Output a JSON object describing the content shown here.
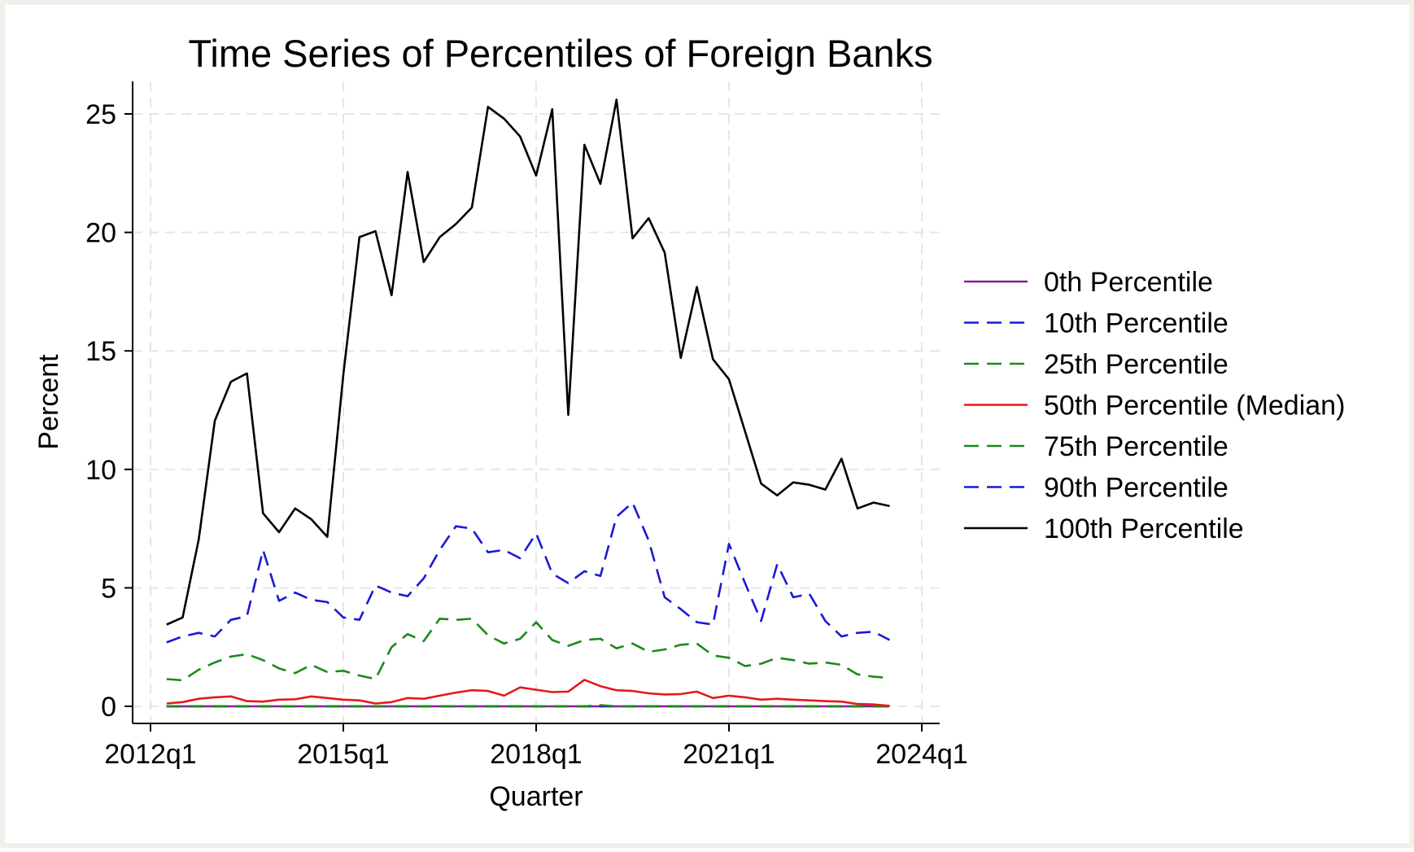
{
  "chart_data": {
    "type": "line",
    "title": "Time Series of Percentiles of Foreign Banks",
    "xlabel": "Quarter",
    "ylabel": "Percent",
    "xlim": [
      0,
      48
    ],
    "ylim": [
      -0.7,
      26.4
    ],
    "x_ticks": [
      {
        "value": 0,
        "label": "2012q1"
      },
      {
        "value": 12,
        "label": "2015q1"
      },
      {
        "value": 24,
        "label": "2018q1"
      },
      {
        "value": 36,
        "label": "2021q1"
      },
      {
        "value": 48,
        "label": "2024q1"
      }
    ],
    "y_ticks": [
      {
        "value": 0,
        "label": "0"
      },
      {
        "value": 5,
        "label": "5"
      },
      {
        "value": 10,
        "label": "10"
      },
      {
        "value": 15,
        "label": "15"
      },
      {
        "value": 20,
        "label": "20"
      },
      {
        "value": 25,
        "label": "25"
      }
    ],
    "grid": true,
    "legend_position": "right",
    "x": [
      1,
      2,
      3,
      4,
      5,
      6,
      7,
      8,
      9,
      10,
      11,
      12,
      13,
      14,
      15,
      16,
      17,
      18,
      19,
      20,
      21,
      22,
      23,
      24,
      25,
      26,
      27,
      28,
      29,
      30,
      31,
      32,
      33,
      34,
      35,
      36,
      37,
      38,
      39,
      40,
      41,
      42,
      43,
      44,
      45,
      46
    ],
    "series": [
      {
        "name": "0th Percentile",
        "color": "#8b1a9e",
        "dash": "solid",
        "values": [
          0,
          0,
          0,
          0,
          0,
          0,
          0,
          0,
          0,
          0,
          0,
          0,
          0,
          0,
          0,
          0,
          0,
          0,
          0,
          0,
          0,
          0,
          0,
          0,
          0,
          0,
          0,
          0,
          0,
          0,
          0,
          0,
          0,
          0,
          0,
          0,
          0,
          0,
          0,
          0,
          0,
          0,
          0,
          0,
          0,
          0
        ]
      },
      {
        "name": "10th Percentile",
        "color": "#1a1ad6",
        "dash": "dashed",
        "values": [
          0,
          0,
          0,
          0,
          0,
          0,
          0,
          0,
          0,
          0,
          0,
          0,
          0,
          0,
          0,
          0,
          0,
          0,
          0,
          0,
          0,
          0,
          0,
          0,
          0,
          0,
          0,
          0,
          0,
          0,
          0,
          0,
          0,
          0,
          0,
          0,
          0,
          0,
          0,
          0,
          0,
          0,
          0,
          0,
          0,
          0
        ]
      },
      {
        "name": "25th Percentile",
        "color": "#1a8a1a",
        "dash": "dashed",
        "values": [
          0,
          0,
          0,
          0,
          0,
          0,
          0,
          0,
          0,
          0,
          0,
          0,
          0,
          0,
          0,
          0,
          0,
          0,
          0,
          0,
          0,
          0,
          0,
          0,
          0,
          0,
          0,
          0.05,
          0,
          0,
          0,
          0,
          0,
          0,
          0,
          0,
          0,
          0,
          0,
          0,
          0,
          0,
          0,
          0,
          0,
          0
        ]
      },
      {
        "name": "50th Percentile (Median)",
        "color": "#e31a1a",
        "dash": "solid",
        "values": [
          0.12,
          0.18,
          0.32,
          0.38,
          0.42,
          0.22,
          0.2,
          0.28,
          0.3,
          0.42,
          0.35,
          0.28,
          0.25,
          0.12,
          0.18,
          0.35,
          0.32,
          0.45,
          0.58,
          0.68,
          0.65,
          0.45,
          0.8,
          0.7,
          0.6,
          0.62,
          1.12,
          0.85,
          0.68,
          0.65,
          0.55,
          0.5,
          0.52,
          0.62,
          0.35,
          0.45,
          0.38,
          0.28,
          0.32,
          0.28,
          0.25,
          0.22,
          0.2,
          0.1,
          0.08,
          0.02
        ]
      },
      {
        "name": "75th Percentile",
        "color": "#1a8a1a",
        "dash": "dashed",
        "values": [
          1.15,
          1.1,
          1.55,
          1.85,
          2.1,
          2.2,
          1.95,
          1.6,
          1.4,
          1.75,
          1.45,
          1.5,
          1.3,
          1.15,
          2.5,
          3.05,
          2.75,
          3.7,
          3.65,
          3.7,
          3.0,
          2.65,
          2.85,
          3.55,
          2.8,
          2.55,
          2.8,
          2.85,
          2.45,
          2.65,
          2.3,
          2.4,
          2.6,
          2.65,
          2.15,
          2.05,
          1.7,
          1.8,
          2.05,
          1.95,
          1.8,
          1.85,
          1.75,
          1.35,
          1.25,
          1.2
        ]
      },
      {
        "name": "90th Percentile",
        "color": "#1a1ad6",
        "dash": "dashed",
        "values": [
          2.7,
          2.95,
          3.1,
          2.95,
          3.65,
          3.8,
          6.6,
          4.45,
          4.8,
          4.5,
          4.4,
          3.75,
          3.65,
          5.1,
          4.8,
          4.65,
          5.4,
          6.6,
          7.6,
          7.5,
          6.5,
          6.6,
          6.25,
          7.3,
          5.6,
          5.2,
          5.7,
          5.5,
          8.0,
          8.6,
          7.0,
          4.6,
          4.1,
          3.55,
          3.45,
          6.85,
          5.2,
          3.6,
          6.0,
          4.6,
          4.75,
          3.6,
          2.95,
          3.1,
          3.15,
          2.8
        ]
      },
      {
        "name": "100th Percentile",
        "color": "#000000",
        "dash": "solid",
        "values": [
          3.45,
          3.75,
          7.05,
          12.05,
          13.7,
          14.05,
          8.15,
          7.35,
          8.35,
          7.9,
          7.15,
          14.0,
          19.8,
          20.05,
          17.35,
          22.55,
          18.75,
          19.8,
          20.35,
          21.05,
          25.3,
          24.8,
          24.05,
          22.4,
          25.2,
          12.3,
          23.7,
          22.05,
          25.6,
          19.75,
          20.6,
          19.15,
          14.7,
          17.7,
          14.65,
          13.8,
          11.6,
          9.4,
          8.9,
          9.45,
          9.35,
          9.15,
          10.45,
          8.35,
          8.6,
          8.45
        ]
      }
    ]
  }
}
